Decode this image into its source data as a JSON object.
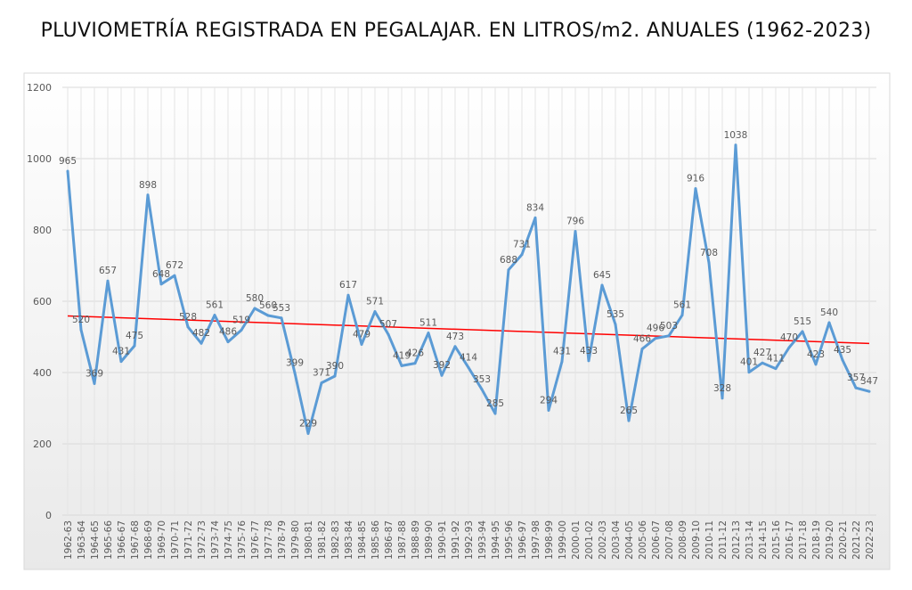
{
  "chart_data": {
    "type": "line",
    "title": "PLUVIOMETRÍA REGISTRADA EN PEGALAJAR. EN LITROS/m2. ANUALES (1962-2023)",
    "xlabel": "",
    "ylabel": "",
    "ylim": [
      0,
      1200
    ],
    "yticks": [
      0,
      200,
      400,
      600,
      800,
      1000,
      1200
    ],
    "grid": true,
    "categories": [
      "1962-63",
      "1963-64",
      "1964-65",
      "1965-66",
      "1966-67",
      "1967-68",
      "1968-69",
      "1969-70",
      "1970-71",
      "1971-72",
      "1972-73",
      "1973-74",
      "1974-75",
      "1975-76",
      "1976-77",
      "1977-78",
      "1978-79",
      "1979-80",
      "1980-81",
      "1981-82",
      "1982-83",
      "1983-84",
      "1984-85",
      "1985-86",
      "1986-87",
      "1987-88",
      "1988-89",
      "1989-90",
      "1990-91",
      "1991-92",
      "1992-93",
      "1993-94",
      "1994-95",
      "1995-96",
      "1996-97",
      "1997-98",
      "1998-99",
      "1999-00",
      "2000-01",
      "2001-02",
      "2002-03",
      "2003-04",
      "2004-05",
      "2005-06",
      "2006-07",
      "2007-08",
      "2008-09",
      "2009-10",
      "2010-11",
      "2011-12",
      "2012-13",
      "2013-14",
      "2014-15",
      "2015-16",
      "2016-17",
      "2017-18",
      "2018-19",
      "2019-20",
      "2020-21",
      "2021-22",
      "2022-23"
    ],
    "series": [
      {
        "values": [
          965,
          520,
          369,
          657,
          431,
          475,
          898,
          648,
          672,
          528,
          482,
          561,
          486,
          519,
          580,
          560,
          553,
          399,
          229,
          371,
          390,
          617,
          479,
          571,
          507,
          419,
          426,
          511,
          392,
          473,
          414,
          353,
          285,
          688,
          731,
          834,
          294,
          431,
          796,
          433,
          645,
          535,
          265,
          466,
          496,
          503,
          561,
          916,
          708,
          328,
          1038,
          401,
          427,
          411,
          470,
          515,
          423,
          540,
          435,
          357,
          347
        ],
        "color": "#5b9bd5",
        "data_labels": true
      }
    ],
    "trendline": {
      "type": "linear",
      "color": "#ff0000"
    }
  }
}
